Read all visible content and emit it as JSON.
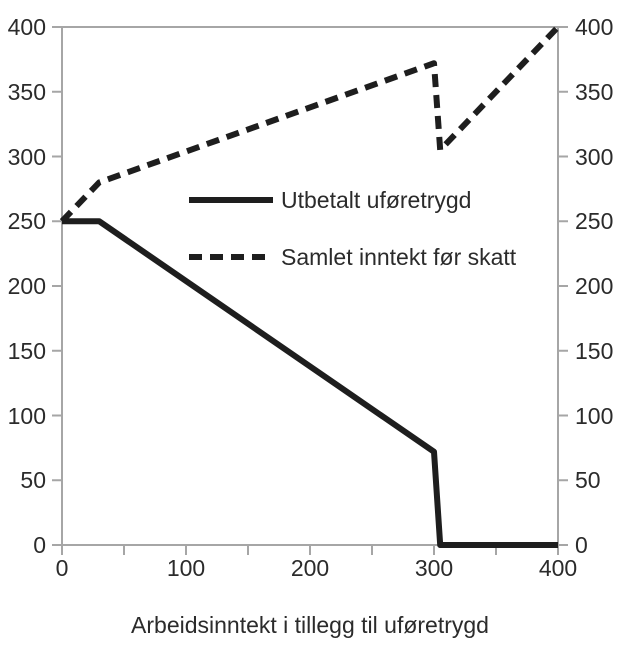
{
  "chart_data": {
    "type": "line",
    "title": "",
    "xlabel": "Arbeidsinntekt i tillegg til uføretrygd",
    "ylabel": "",
    "xlim": [
      0,
      400
    ],
    "ylim": [
      0,
      400
    ],
    "x_ticks": [
      0,
      50,
      100,
      150,
      200,
      250,
      300,
      350,
      400
    ],
    "x_tick_labels": [
      "0",
      "",
      "100",
      "",
      "200",
      "",
      "300",
      "",
      "400"
    ],
    "y_ticks": [
      0,
      50,
      100,
      150,
      200,
      250,
      300,
      350,
      400
    ],
    "y_tick_labels": [
      "0",
      "50",
      "100",
      "150",
      "200",
      "250",
      "300",
      "350",
      "400"
    ],
    "grid": false,
    "legend_position": "inside-upper-center",
    "series": [
      {
        "name": "Utbetalt uføretrygd",
        "style": "solid",
        "points": [
          [
            0,
            250
          ],
          [
            30,
            250
          ],
          [
            300,
            72
          ],
          [
            305,
            0
          ],
          [
            400,
            0
          ]
        ]
      },
      {
        "name": "Samlet inntekt før skatt",
        "style": "dashed",
        "points": [
          [
            0,
            250
          ],
          [
            30,
            280
          ],
          [
            300,
            372
          ],
          [
            305,
            305
          ],
          [
            400,
            400
          ]
        ]
      }
    ]
  },
  "colors": {
    "background": "#ffffff",
    "axis": "#a6a6a6",
    "line": "#1e1e1e",
    "text": "#2b2b2b"
  }
}
